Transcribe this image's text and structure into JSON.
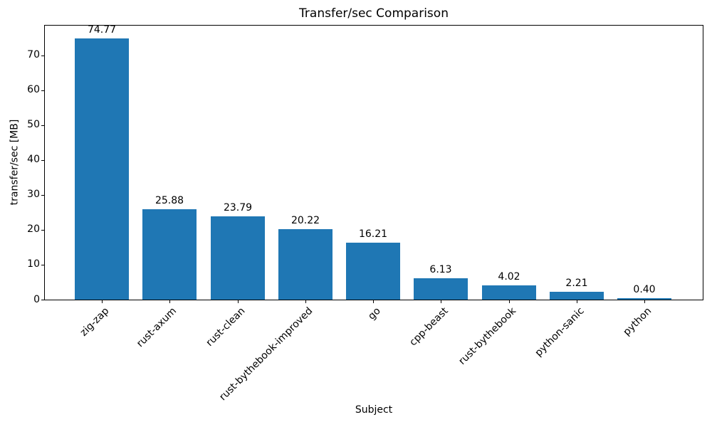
{
  "chart_data": {
    "type": "bar",
    "title": "Transfer/sec Comparison",
    "xlabel": "Subject",
    "ylabel": "transfer/sec [MB]",
    "categories": [
      "zig-zap",
      "rust-axum",
      "rust-clean",
      "rust-bythebook-improved",
      "go",
      "cpp-beast",
      "rust-bythebook",
      "python-sanic",
      "python"
    ],
    "values": [
      74.77,
      25.88,
      23.79,
      20.22,
      16.21,
      6.13,
      4.02,
      2.21,
      0.4
    ],
    "value_labels": [
      "74.77",
      "25.88",
      "23.79",
      "20.22",
      "16.21",
      "6.13",
      "4.02",
      "2.21",
      "0.40"
    ],
    "yticks": [
      0,
      10,
      20,
      30,
      40,
      50,
      60,
      70
    ],
    "ylim": [
      0,
      78.5
    ],
    "bar_color": "#1f77b4",
    "axis_color": "#000000",
    "text_color": "#000000",
    "grid": false,
    "legend": "none",
    "xtick_label_rotation_deg": 45
  }
}
